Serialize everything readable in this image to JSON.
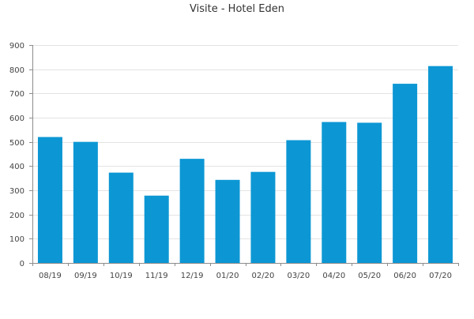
{
  "chart_data": {
    "type": "bar",
    "title": "Visite - Hotel Eden",
    "xlabel": "",
    "ylabel": "",
    "categories": [
      "08/19",
      "09/19",
      "10/19",
      "11/19",
      "12/19",
      "01/20",
      "02/20",
      "03/20",
      "04/20",
      "05/20",
      "06/20",
      "07/20"
    ],
    "values": [
      520,
      500,
      373,
      278,
      430,
      343,
      376,
      507,
      582,
      579,
      740,
      813
    ],
    "ylim": [
      0,
      900
    ],
    "yticks": [
      0,
      100,
      200,
      300,
      400,
      500,
      600,
      700,
      800,
      900
    ],
    "grid": true,
    "bar_color": "#0c97d4",
    "grid_color": "#e3e3e3",
    "axis_color": "#8c8c8c"
  }
}
